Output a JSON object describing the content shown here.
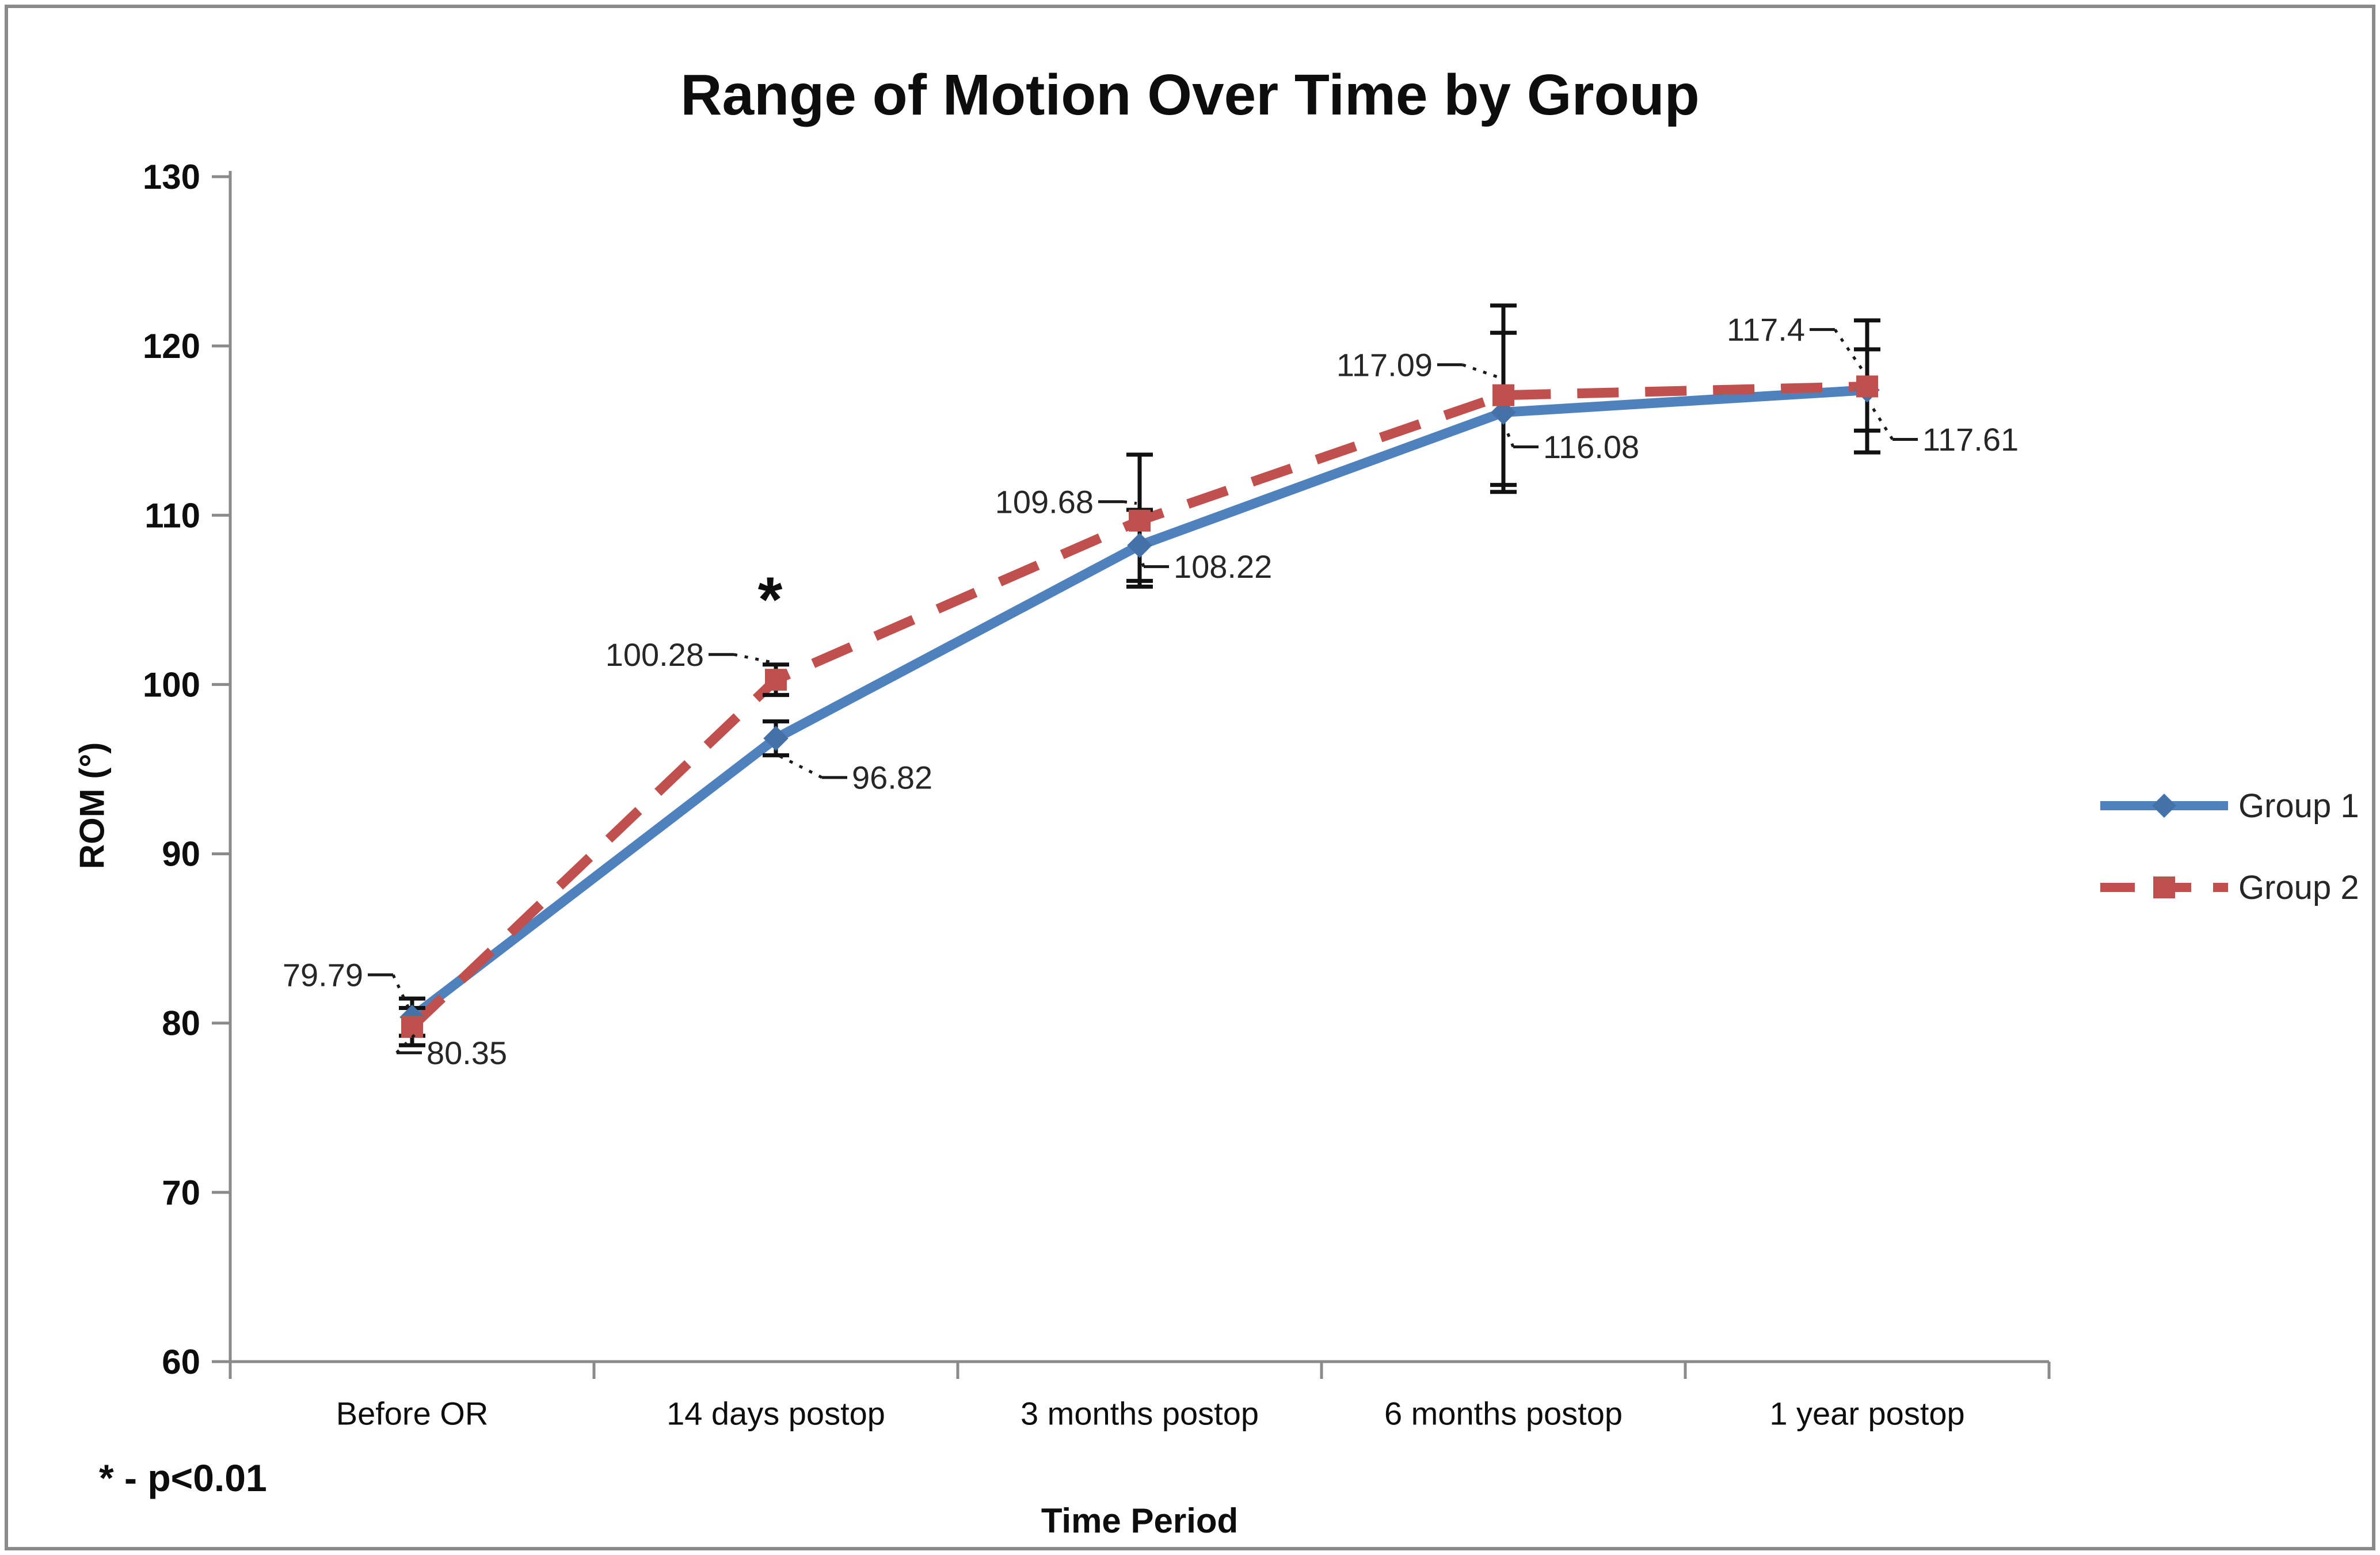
{
  "figure": {
    "title": "Range of Motion Over Time by Group",
    "footnote": "* - p<0.01",
    "background_color": "#ffffff",
    "border_color": "#8a8a8a"
  },
  "chart_data": {
    "type": "line",
    "title": "Range of Motion Over Time by Group",
    "xlabel": "Time Period",
    "ylabel": "ROM (°)",
    "ylim": [
      60,
      130
    ],
    "yticks": [
      60,
      70,
      80,
      90,
      100,
      110,
      120,
      130
    ],
    "grid": false,
    "legend_position": "right",
    "axis_color": "#8a8a8a",
    "error_bar_color": "#111111",
    "label_color": "#262626",
    "categories": [
      "Before OR",
      "14 days postop",
      "3 months postop",
      "6 months postop",
      "1 year postop"
    ],
    "series": [
      {
        "name": "Group 1",
        "color": "#4f81bd",
        "marker_fill": "#4472a8",
        "line_style": "solid",
        "marker": "diamond",
        "values": [
          80.35,
          96.82,
          108.22,
          116.08,
          117.4
        ],
        "error_bars": [
          1.1,
          1.0,
          2.1,
          4.7,
          2.4
        ],
        "point_labels": [
          {
            "text": "80.35",
            "side": "right",
            "dx": 25,
            "dy": 62
          },
          {
            "text": "96.82",
            "side": "right",
            "dx": 132,
            "dy": 68
          },
          {
            "text": "108.22",
            "side": "right",
            "dx": 59,
            "dy": 37
          },
          {
            "text": "116.08",
            "side": "right",
            "dx": 69,
            "dy": 60
          },
          {
            "text": "117.4",
            "side": "left",
            "dx": -108,
            "dy": -105
          }
        ]
      },
      {
        "name": "Group 2",
        "color": "#c0504d",
        "marker_fill": "#c0504d",
        "line_style": "dashed",
        "marker": "square",
        "values": [
          79.79,
          100.28,
          109.68,
          117.09,
          117.61
        ],
        "error_bars": [
          1.1,
          0.9,
          3.9,
          5.3,
          3.9
        ],
        "point_labels": [
          {
            "text": "79.79",
            "side": "left",
            "dx": -85,
            "dy": -90
          },
          {
            "text": "100.28",
            "side": "left",
            "dx": -125,
            "dy": -44
          },
          {
            "text": "109.68",
            "side": "left",
            "dx": -80,
            "dy": -33
          },
          {
            "text": "117.09",
            "side": "left",
            "dx": -123,
            "dy": -53
          },
          {
            "text": "117.61",
            "side": "right",
            "dx": 96,
            "dy": 92
          }
        ]
      }
    ],
    "annotations": [
      {
        "text": "*",
        "series_index": 1,
        "category_index": 1,
        "offset": [
          -10,
          -140
        ],
        "meaning": "p<0.01"
      }
    ]
  },
  "legend": {
    "items": [
      {
        "label": "Group 1"
      },
      {
        "label": "Group 2"
      }
    ]
  }
}
